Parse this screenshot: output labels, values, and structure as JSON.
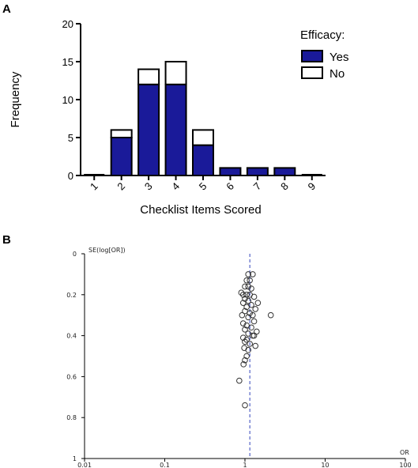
{
  "chart_data": [
    {
      "panel": "A",
      "type": "bar",
      "stacked": true,
      "xlabel": "Checklist Items Scored",
      "ylabel": "Frequency",
      "ylim": [
        0,
        20
      ],
      "yticks": [
        0,
        5,
        10,
        15,
        20
      ],
      "categories": [
        "1",
        "2",
        "3",
        "4",
        "5",
        "6",
        "7",
        "8",
        "9"
      ],
      "legend_title": "Efficacy:",
      "legend_position": "top-right",
      "series": [
        {
          "name": "Yes",
          "color": "#1a1a99",
          "values": [
            0,
            5,
            12,
            12,
            4,
            1,
            1,
            1,
            0
          ]
        },
        {
          "name": "No",
          "color": "#ffffff",
          "values": [
            0,
            1,
            2,
            3,
            2,
            0,
            0,
            0,
            0
          ]
        }
      ]
    },
    {
      "panel": "B",
      "type": "scatter",
      "xlabel": "OR",
      "ylabel": "SE(log[OR])",
      "x_scale": "log",
      "xlim": [
        0.01,
        100
      ],
      "ylim": [
        0,
        1
      ],
      "y_inverted": true,
      "xticks": [
        "0.01",
        "0.1",
        "1",
        "10",
        "100"
      ],
      "yticks": [
        "0",
        "0.2",
        "0.4",
        "0.6",
        "0.8",
        "1"
      ],
      "reference_line_or": 1.15,
      "reference_line_color": "#3344bb",
      "points": [
        {
          "or": 1.1,
          "se": 0.1
        },
        {
          "or": 1.25,
          "se": 0.1
        },
        {
          "or": 1.05,
          "se": 0.13
        },
        {
          "or": 1.15,
          "se": 0.13
        },
        {
          "or": 1.0,
          "se": 0.16
        },
        {
          "or": 1.1,
          "se": 0.16
        },
        {
          "or": 1.2,
          "se": 0.17
        },
        {
          "or": 0.9,
          "se": 0.19
        },
        {
          "or": 0.95,
          "se": 0.2
        },
        {
          "or": 1.05,
          "se": 0.2
        },
        {
          "or": 1.15,
          "se": 0.2
        },
        {
          "or": 1.3,
          "se": 0.21
        },
        {
          "or": 1.0,
          "se": 0.22
        },
        {
          "or": 1.1,
          "se": 0.23
        },
        {
          "or": 1.45,
          "se": 0.24
        },
        {
          "or": 0.95,
          "se": 0.24
        },
        {
          "or": 1.2,
          "se": 0.25
        },
        {
          "or": 1.05,
          "se": 0.26
        },
        {
          "or": 1.35,
          "se": 0.27
        },
        {
          "or": 1.0,
          "se": 0.28
        },
        {
          "or": 1.15,
          "se": 0.29
        },
        {
          "or": 0.92,
          "se": 0.3
        },
        {
          "or": 1.25,
          "se": 0.3
        },
        {
          "or": 2.1,
          "se": 0.3
        },
        {
          "or": 1.1,
          "se": 0.31
        },
        {
          "or": 1.3,
          "se": 0.33
        },
        {
          "or": 0.95,
          "se": 0.34
        },
        {
          "or": 1.05,
          "se": 0.35
        },
        {
          "or": 1.2,
          "se": 0.36
        },
        {
          "or": 1.0,
          "se": 0.37
        },
        {
          "or": 1.4,
          "se": 0.38
        },
        {
          "or": 1.1,
          "se": 0.39
        },
        {
          "or": 1.25,
          "se": 0.4
        },
        {
          "or": 1.3,
          "se": 0.4
        },
        {
          "or": 0.95,
          "se": 0.41
        },
        {
          "or": 1.05,
          "se": 0.42
        },
        {
          "or": 1.0,
          "se": 0.43
        },
        {
          "or": 1.15,
          "se": 0.44
        },
        {
          "or": 1.35,
          "se": 0.45
        },
        {
          "or": 0.98,
          "se": 0.46
        },
        {
          "or": 1.1,
          "se": 0.47
        },
        {
          "or": 1.05,
          "se": 0.5
        },
        {
          "or": 1.0,
          "se": 0.52
        },
        {
          "or": 0.96,
          "se": 0.54
        },
        {
          "or": 0.85,
          "se": 0.62
        },
        {
          "or": 1.0,
          "se": 0.74
        }
      ]
    }
  ],
  "panel_labels": {
    "a": "A",
    "b": "B"
  }
}
